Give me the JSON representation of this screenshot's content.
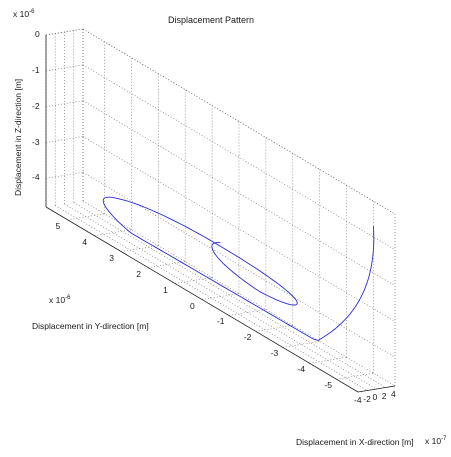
{
  "chart_data": {
    "type": "line",
    "title": "Displacement Pattern",
    "xlabel": "Displacement in X-direction [m]",
    "ylabel": "Displacement in Y-direction [m]",
    "zlabel": "Displacement in Z-direction [m]",
    "x_multiplier_base": "x 10",
    "x_multiplier_exp": "-7",
    "y_multiplier_base": "x 10",
    "y_multiplier_exp": "-6",
    "z_multiplier_base": "x 10",
    "z_multiplier_exp": "-6",
    "z_ticks": [
      "0",
      "-1",
      "-2",
      "-3",
      "-4"
    ],
    "y_ticks": [
      "5",
      "4",
      "3",
      "2",
      "1",
      "0",
      "-1",
      "-2",
      "-3",
      "-4",
      "-5"
    ],
    "x_ticks": [
      "-4",
      "-2",
      "0",
      "2",
      "4"
    ],
    "xlim": [
      -4,
      4
    ],
    "ylim": [
      -5.8,
      5.8
    ],
    "zlim": [
      -4.8,
      0
    ],
    "grid": true,
    "line_color": "#2b2bd6",
    "series": [
      {
        "x": [
          0.0,
          0.5,
          1.0,
          1.5,
          2.0,
          2.5,
          3.0,
          3.5,
          4.0
        ],
        "y": [
          0.0,
          0.8,
          1.8,
          2.8,
          3.8,
          4.6,
          5.2,
          5.5,
          5.0
        ],
        "z": [
          -3.3,
          -3.6,
          -3.9,
          -4.0,
          -4.2,
          -4.3,
          -4.2,
          -4.5,
          -0.7
        ]
      }
    ]
  }
}
